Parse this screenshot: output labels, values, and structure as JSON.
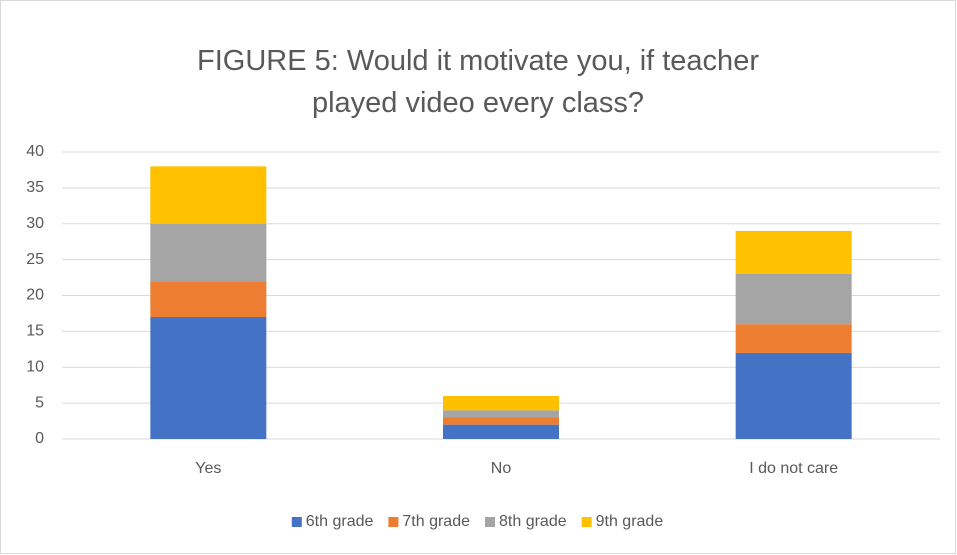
{
  "chart_data": {
    "type": "stacked_bar",
    "title": "FIGURE 5: Would it motivate you, if teacher played video every class?",
    "categories": [
      "Yes",
      "No",
      "I do not care"
    ],
    "series": [
      {
        "name": "6th grade",
        "color": "#4472c4",
        "values": [
          17,
          2,
          12
        ]
      },
      {
        "name": "7th grade",
        "color": "#ed7d31",
        "values": [
          5,
          1,
          4
        ]
      },
      {
        "name": "8th grade",
        "color": "#a5a5a5",
        "values": [
          8,
          1,
          7
        ]
      },
      {
        "name": "9th grade",
        "color": "#ffc000",
        "values": [
          8,
          2,
          6
        ]
      }
    ],
    "ylim": [
      0,
      40
    ],
    "yticks": [
      0,
      5,
      10,
      15,
      20,
      25,
      30,
      35,
      40
    ],
    "grid": true,
    "legend": "bottom"
  }
}
